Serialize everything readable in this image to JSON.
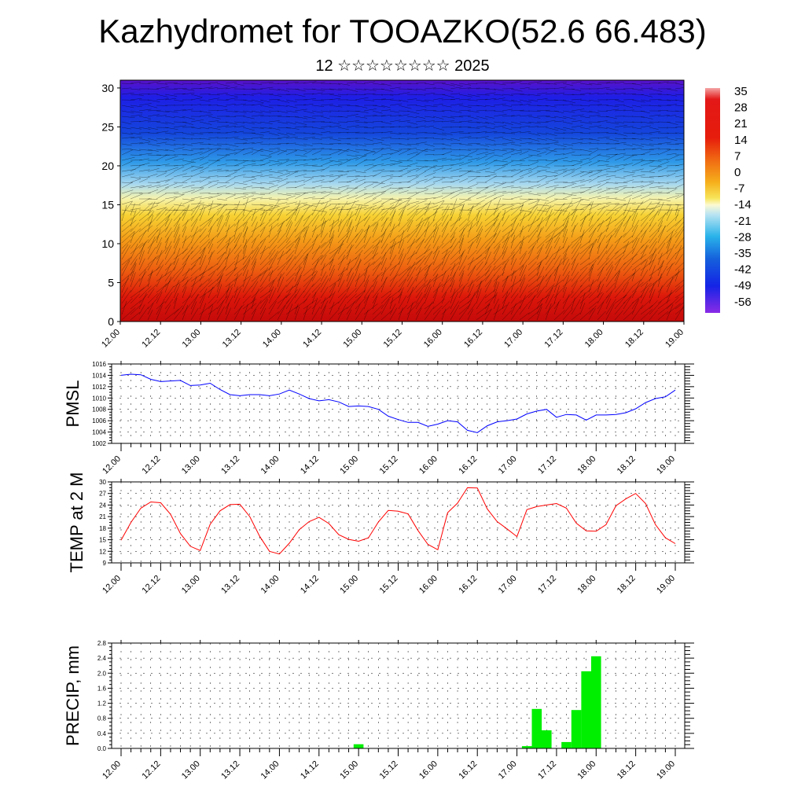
{
  "header": {
    "title": "Kazhydromet for TOOAZKO(52.6 66.483)",
    "subtitle": "12 ☆☆☆☆☆☆☆☆ 2025"
  },
  "x_tick_labels": [
    "12.00",
    "12.12",
    "13.00",
    "13.12",
    "14.00",
    "14.12",
    "15.00",
    "15.12",
    "16.00",
    "16.12",
    "17.00",
    "17.12",
    "18.00",
    "18.12",
    "19.00"
  ],
  "colors": {
    "pmsl_line": "#0000ff",
    "temp_line": "#ff0000",
    "precip_bar": "#00ee00",
    "grid": "#000000"
  },
  "chart_data": [
    {
      "type": "heatmap",
      "name": "upper-air-cross-section",
      "xlabel": "",
      "ylabel": "",
      "ylim": [
        0,
        31
      ],
      "y_ticks": [
        0,
        5,
        10,
        15,
        20,
        25,
        30
      ],
      "x_ticks": [
        "12.00",
        "12.12",
        "13.00",
        "13.12",
        "14.00",
        "14.12",
        "15.00",
        "15.12",
        "16.00",
        "16.12",
        "17.00",
        "17.12",
        "18.00",
        "18.12",
        "19.00"
      ],
      "colorbar": {
        "labels": [
          "35",
          "28",
          "21",
          "14",
          "7",
          "0",
          "-7",
          "-14",
          "-21",
          "-28",
          "-35",
          "-42",
          "-49",
          "-56"
        ],
        "range": [
          -60,
          38
        ]
      },
      "overlay": "wind barbs"
    },
    {
      "type": "line",
      "name": "PMSL",
      "ylabel": "PMSL",
      "ylim": [
        1002,
        1016
      ],
      "y_ticks": [
        1002,
        1004,
        1006,
        1008,
        1010,
        1012,
        1014,
        1016
      ],
      "x_ticks": [
        "12.00",
        "12.12",
        "13.00",
        "13.12",
        "14.00",
        "14.12",
        "15.00",
        "15.12",
        "16.00",
        "16.12",
        "17.00",
        "17.12",
        "18.00",
        "18.12",
        "19.00"
      ],
      "values": [
        1014.0,
        1014.2,
        1014.1,
        1013.3,
        1012.9,
        1013.0,
        1013.1,
        1012.2,
        1012.3,
        1012.6,
        1011.5,
        1010.6,
        1010.4,
        1010.6,
        1010.6,
        1010.4,
        1010.7,
        1011.4,
        1010.7,
        1009.9,
        1009.5,
        1009.7,
        1009.3,
        1008.5,
        1008.6,
        1008.5,
        1008.0,
        1006.8,
        1006.2,
        1005.7,
        1005.7,
        1005.0,
        1005.4,
        1006.0,
        1005.8,
        1004.3,
        1003.9,
        1005.1,
        1005.8,
        1006.0,
        1006.3,
        1007.2,
        1007.7,
        1008.0,
        1006.6,
        1007.1,
        1007.0,
        1006.1,
        1007.0,
        1007.0,
        1007.1,
        1007.4,
        1008.1,
        1009.2,
        1009.9,
        1010.2,
        1011.4
      ]
    },
    {
      "type": "line",
      "name": "TEMP at 2 M",
      "ylabel": "TEMP at 2 M",
      "ylim": [
        9,
        30
      ],
      "y_ticks": [
        9,
        12,
        15,
        18,
        21,
        24,
        27,
        30
      ],
      "x_ticks": [
        "12.00",
        "12.12",
        "13.00",
        "13.12",
        "14.00",
        "14.12",
        "15.00",
        "15.12",
        "16.00",
        "16.12",
        "17.00",
        "17.12",
        "18.00",
        "18.12",
        "19.00"
      ],
      "values": [
        14.9,
        19.5,
        23.2,
        24.8,
        24.6,
        21.6,
        16.6,
        13.3,
        12.2,
        19.0,
        22.5,
        24.1,
        24.2,
        21.0,
        15.9,
        12.0,
        11.3,
        14.1,
        17.6,
        19.7,
        20.8,
        19.2,
        16.3,
        15.1,
        14.6,
        15.5,
        19.6,
        22.6,
        22.4,
        21.7,
        17.4,
        13.8,
        12.4,
        22.0,
        24.5,
        28.5,
        28.4,
        23.0,
        19.7,
        17.8,
        15.8,
        22.8,
        23.6,
        24.0,
        24.4,
        23.2,
        19.3,
        17.3,
        17.2,
        18.9,
        23.8,
        25.6,
        27.0,
        24.4,
        18.9,
        15.5,
        14.0
      ]
    },
    {
      "type": "bar",
      "name": "PRECIP, mm",
      "ylabel": "PRECIP, mm",
      "ylim": [
        0.0,
        2.8
      ],
      "y_ticks": [
        "0.0",
        "0.4",
        "0.8",
        "1.2",
        "1.6",
        "2.0",
        "2.4",
        "2.8"
      ],
      "x_ticks": [
        "12.00",
        "12.12",
        "13.00",
        "13.12",
        "14.00",
        "14.12",
        "15.00",
        "15.12",
        "16.00",
        "16.12",
        "17.00",
        "17.12",
        "18.00",
        "18.12",
        "19.00"
      ],
      "values": [
        0,
        0,
        0,
        0,
        0,
        0,
        0,
        0,
        0,
        0,
        0,
        0,
        0,
        0,
        0,
        0,
        0.01,
        0.01,
        0.01,
        0.01,
        0.01,
        0,
        0,
        0,
        0.11,
        0,
        0,
        0,
        0,
        0,
        0,
        0,
        0,
        0,
        0.01,
        0,
        0,
        0,
        0,
        0,
        0,
        0.06,
        1.05,
        0.48,
        0,
        0.17,
        1.02,
        2.05,
        2.45,
        0,
        0,
        0,
        0,
        0,
        0,
        0,
        0
      ]
    }
  ]
}
